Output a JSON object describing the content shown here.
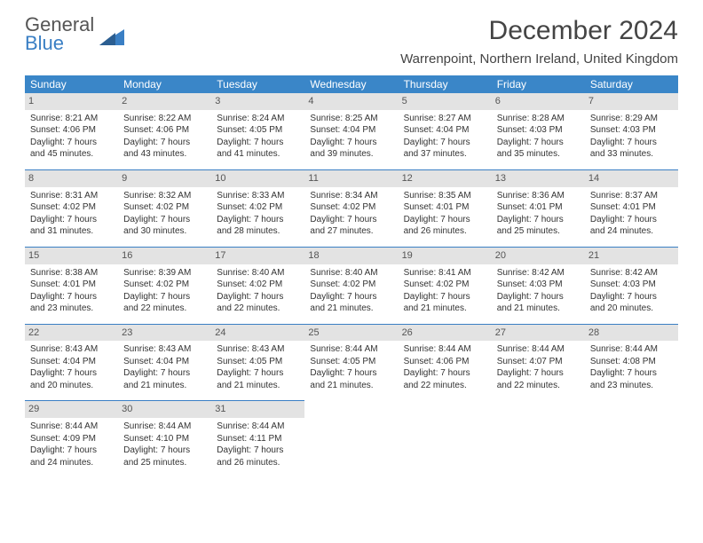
{
  "logo": {
    "line1": "General",
    "line2": "Blue"
  },
  "title": "December 2024",
  "location": "Warrenpoint, Northern Ireland, United Kingdom",
  "colors": {
    "header_bg": "#3a86c8",
    "header_text": "#ffffff",
    "daynum_bg": "#e3e3e3",
    "border": "#3a7fc4",
    "logo_grey": "#555555",
    "logo_blue": "#3a7fc4",
    "body_text": "#333333",
    "background": "#ffffff"
  },
  "fonts": {
    "title_size": 30,
    "location_size": 15,
    "dayhead_size": 12,
    "cell_size": 10
  },
  "day_headers": [
    "Sunday",
    "Monday",
    "Tuesday",
    "Wednesday",
    "Thursday",
    "Friday",
    "Saturday"
  ],
  "weeks": [
    [
      {
        "n": "1",
        "sr": "Sunrise: 8:21 AM",
        "ss": "Sunset: 4:06 PM",
        "d1": "Daylight: 7 hours",
        "d2": "and 45 minutes."
      },
      {
        "n": "2",
        "sr": "Sunrise: 8:22 AM",
        "ss": "Sunset: 4:06 PM",
        "d1": "Daylight: 7 hours",
        "d2": "and 43 minutes."
      },
      {
        "n": "3",
        "sr": "Sunrise: 8:24 AM",
        "ss": "Sunset: 4:05 PM",
        "d1": "Daylight: 7 hours",
        "d2": "and 41 minutes."
      },
      {
        "n": "4",
        "sr": "Sunrise: 8:25 AM",
        "ss": "Sunset: 4:04 PM",
        "d1": "Daylight: 7 hours",
        "d2": "and 39 minutes."
      },
      {
        "n": "5",
        "sr": "Sunrise: 8:27 AM",
        "ss": "Sunset: 4:04 PM",
        "d1": "Daylight: 7 hours",
        "d2": "and 37 minutes."
      },
      {
        "n": "6",
        "sr": "Sunrise: 8:28 AM",
        "ss": "Sunset: 4:03 PM",
        "d1": "Daylight: 7 hours",
        "d2": "and 35 minutes."
      },
      {
        "n": "7",
        "sr": "Sunrise: 8:29 AM",
        "ss": "Sunset: 4:03 PM",
        "d1": "Daylight: 7 hours",
        "d2": "and 33 minutes."
      }
    ],
    [
      {
        "n": "8",
        "sr": "Sunrise: 8:31 AM",
        "ss": "Sunset: 4:02 PM",
        "d1": "Daylight: 7 hours",
        "d2": "and 31 minutes."
      },
      {
        "n": "9",
        "sr": "Sunrise: 8:32 AM",
        "ss": "Sunset: 4:02 PM",
        "d1": "Daylight: 7 hours",
        "d2": "and 30 minutes."
      },
      {
        "n": "10",
        "sr": "Sunrise: 8:33 AM",
        "ss": "Sunset: 4:02 PM",
        "d1": "Daylight: 7 hours",
        "d2": "and 28 minutes."
      },
      {
        "n": "11",
        "sr": "Sunrise: 8:34 AM",
        "ss": "Sunset: 4:02 PM",
        "d1": "Daylight: 7 hours",
        "d2": "and 27 minutes."
      },
      {
        "n": "12",
        "sr": "Sunrise: 8:35 AM",
        "ss": "Sunset: 4:01 PM",
        "d1": "Daylight: 7 hours",
        "d2": "and 26 minutes."
      },
      {
        "n": "13",
        "sr": "Sunrise: 8:36 AM",
        "ss": "Sunset: 4:01 PM",
        "d1": "Daylight: 7 hours",
        "d2": "and 25 minutes."
      },
      {
        "n": "14",
        "sr": "Sunrise: 8:37 AM",
        "ss": "Sunset: 4:01 PM",
        "d1": "Daylight: 7 hours",
        "d2": "and 24 minutes."
      }
    ],
    [
      {
        "n": "15",
        "sr": "Sunrise: 8:38 AM",
        "ss": "Sunset: 4:01 PM",
        "d1": "Daylight: 7 hours",
        "d2": "and 23 minutes."
      },
      {
        "n": "16",
        "sr": "Sunrise: 8:39 AM",
        "ss": "Sunset: 4:02 PM",
        "d1": "Daylight: 7 hours",
        "d2": "and 22 minutes."
      },
      {
        "n": "17",
        "sr": "Sunrise: 8:40 AM",
        "ss": "Sunset: 4:02 PM",
        "d1": "Daylight: 7 hours",
        "d2": "and 22 minutes."
      },
      {
        "n": "18",
        "sr": "Sunrise: 8:40 AM",
        "ss": "Sunset: 4:02 PM",
        "d1": "Daylight: 7 hours",
        "d2": "and 21 minutes."
      },
      {
        "n": "19",
        "sr": "Sunrise: 8:41 AM",
        "ss": "Sunset: 4:02 PM",
        "d1": "Daylight: 7 hours",
        "d2": "and 21 minutes."
      },
      {
        "n": "20",
        "sr": "Sunrise: 8:42 AM",
        "ss": "Sunset: 4:03 PM",
        "d1": "Daylight: 7 hours",
        "d2": "and 21 minutes."
      },
      {
        "n": "21",
        "sr": "Sunrise: 8:42 AM",
        "ss": "Sunset: 4:03 PM",
        "d1": "Daylight: 7 hours",
        "d2": "and 20 minutes."
      }
    ],
    [
      {
        "n": "22",
        "sr": "Sunrise: 8:43 AM",
        "ss": "Sunset: 4:04 PM",
        "d1": "Daylight: 7 hours",
        "d2": "and 20 minutes."
      },
      {
        "n": "23",
        "sr": "Sunrise: 8:43 AM",
        "ss": "Sunset: 4:04 PM",
        "d1": "Daylight: 7 hours",
        "d2": "and 21 minutes."
      },
      {
        "n": "24",
        "sr": "Sunrise: 8:43 AM",
        "ss": "Sunset: 4:05 PM",
        "d1": "Daylight: 7 hours",
        "d2": "and 21 minutes."
      },
      {
        "n": "25",
        "sr": "Sunrise: 8:44 AM",
        "ss": "Sunset: 4:05 PM",
        "d1": "Daylight: 7 hours",
        "d2": "and 21 minutes."
      },
      {
        "n": "26",
        "sr": "Sunrise: 8:44 AM",
        "ss": "Sunset: 4:06 PM",
        "d1": "Daylight: 7 hours",
        "d2": "and 22 minutes."
      },
      {
        "n": "27",
        "sr": "Sunrise: 8:44 AM",
        "ss": "Sunset: 4:07 PM",
        "d1": "Daylight: 7 hours",
        "d2": "and 22 minutes."
      },
      {
        "n": "28",
        "sr": "Sunrise: 8:44 AM",
        "ss": "Sunset: 4:08 PM",
        "d1": "Daylight: 7 hours",
        "d2": "and 23 minutes."
      }
    ],
    [
      {
        "n": "29",
        "sr": "Sunrise: 8:44 AM",
        "ss": "Sunset: 4:09 PM",
        "d1": "Daylight: 7 hours",
        "d2": "and 24 minutes."
      },
      {
        "n": "30",
        "sr": "Sunrise: 8:44 AM",
        "ss": "Sunset: 4:10 PM",
        "d1": "Daylight: 7 hours",
        "d2": "and 25 minutes."
      },
      {
        "n": "31",
        "sr": "Sunrise: 8:44 AM",
        "ss": "Sunset: 4:11 PM",
        "d1": "Daylight: 7 hours",
        "d2": "and 26 minutes."
      },
      null,
      null,
      null,
      null
    ]
  ]
}
